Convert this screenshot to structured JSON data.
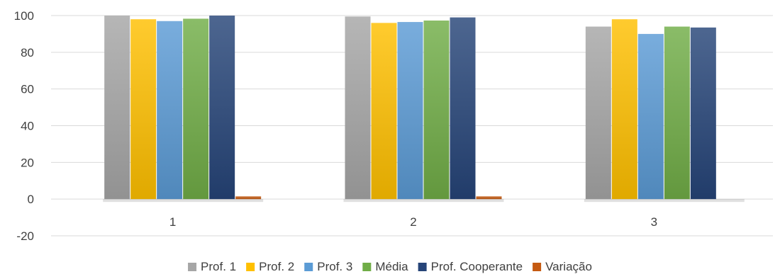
{
  "chart_data": {
    "type": "bar",
    "title": "",
    "xlabel": "",
    "ylabel": "",
    "categories": [
      "1",
      "2",
      "3"
    ],
    "ylim": [
      -20,
      100
    ],
    "yticks": [
      -20,
      0,
      20,
      40,
      60,
      80,
      100
    ],
    "grid": true,
    "legend_position": "bottom",
    "series": [
      {
        "name": "Prof. 1",
        "values": [
          100,
          99.5,
          94
        ],
        "color": "#a6a6a6"
      },
      {
        "name": "Prof. 2",
        "values": [
          98,
          96,
          98
        ],
        "color": "#ffc000"
      },
      {
        "name": "Prof. 3",
        "values": [
          97,
          96.5,
          90
        ],
        "color": "#5b9bd5"
      },
      {
        "name": "Média",
        "values": [
          98.3,
          97.3,
          94
        ],
        "color": "#70ad47"
      },
      {
        "name": "Prof. Cooperante",
        "values": [
          100,
          99,
          93.5
        ],
        "color": "#264478"
      },
      {
        "name": "Variação",
        "values": [
          1.5,
          1.5,
          0
        ],
        "color": "#c55a11"
      }
    ]
  }
}
